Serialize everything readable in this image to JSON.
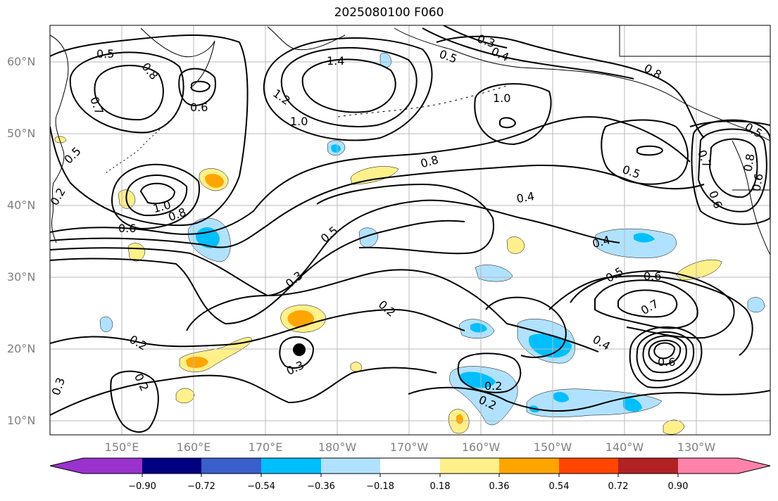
{
  "title": "2025080100 F060",
  "lat_labels": [
    "60°N",
    "50°N",
    "40°N",
    "30°N",
    "20°N",
    "10°N"
  ],
  "lon_labels": [
    "150°E",
    "160°E",
    "170°E",
    "180°W",
    "170°W",
    "160°W",
    "150°W",
    "140°W",
    "130°W"
  ],
  "colorbar": {
    "ticks": [
      "−0.90",
      "−0.72",
      "−0.54",
      "−0.36",
      "−0.18",
      "0.18",
      "0.36",
      "0.54",
      "0.72",
      "0.90"
    ],
    "colors": [
      "#9a32cd",
      "#000080",
      "#3a5fcd",
      "#00bfff",
      "#b0e2ff",
      "#ffffff",
      "#fff08a",
      "#ffa500",
      "#ff4500",
      "#b22222",
      "#ff82ab"
    ]
  },
  "contour_labels": [
    "0.5",
    "0.8",
    "0.7",
    "0.6",
    "1.4",
    "1.2",
    "1.0",
    "0.3",
    "0.4",
    "0.5",
    "1.0",
    "0.8",
    "0.8",
    "0.5",
    "0.4",
    "1.0",
    "0.8",
    "0.6",
    "0.5",
    "0.4",
    "0.3",
    "0.2",
    "0.5",
    "0.6",
    "0.7",
    "0.6",
    "0.4",
    "0.2",
    "0.3",
    "0.2",
    "0.2",
    "0.2",
    "0.3",
    "0.2",
    "0.5",
    "0.7",
    "0.6",
    "0.8",
    "0.5",
    "0.6"
  ],
  "icons": {
    "marker": "storm-center-dot"
  }
}
